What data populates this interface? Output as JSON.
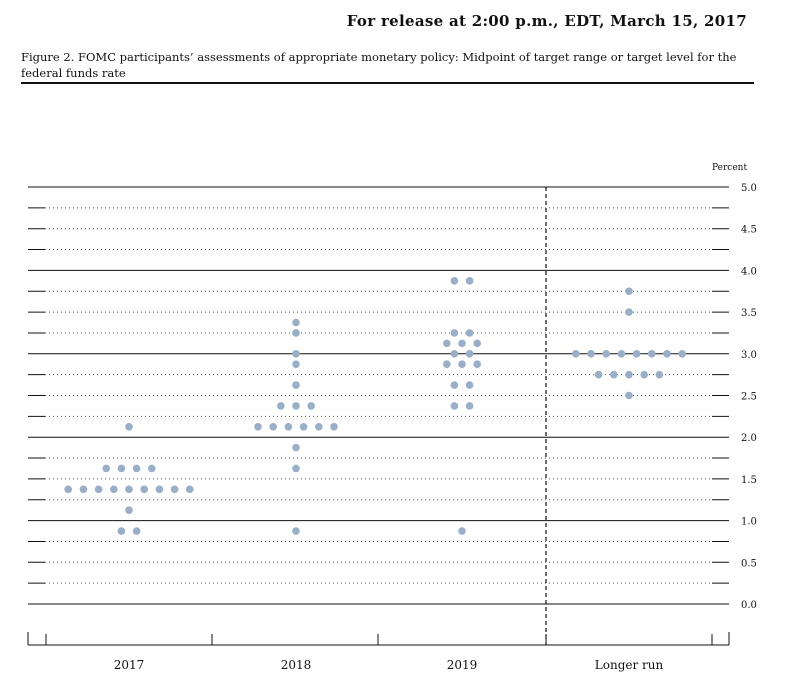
{
  "header": {
    "release": "For release at 2:00 p.m., EDT, March 15, 2017",
    "figure_caption": "Figure 2. FOMC participants’ assessments of appropriate monetary policy: Midpoint of target range or target level for the federal funds rate"
  },
  "chart_data": {
    "type": "scatter",
    "subtype": "dot plot",
    "ylabel": "Percent",
    "ylim": [
      0,
      5
    ],
    "yticks": [
      "0.0",
      "0.5",
      "1.0",
      "1.5",
      "2.0",
      "2.5",
      "3.0",
      "3.5",
      "4.0",
      "4.5",
      "5.0"
    ],
    "y_axis_side": "right",
    "grid": "dotted at 0.25 steps, solid at whole numbers",
    "categories": [
      "2017",
      "2018",
      "2019",
      "Longer run"
    ],
    "separator": "dashed line before Longer run",
    "dot_color": "#9aaec8",
    "series": [
      {
        "category": "2017",
        "points": [
          {
            "y": 2.125,
            "count": 1
          },
          {
            "y": 1.625,
            "count": 4
          },
          {
            "y": 1.375,
            "count": 9
          },
          {
            "y": 1.125,
            "count": 1
          },
          {
            "y": 0.875,
            "count": 2
          }
        ]
      },
      {
        "category": "2018",
        "points": [
          {
            "y": 3.375,
            "count": 1
          },
          {
            "y": 3.25,
            "count": 1
          },
          {
            "y": 3.0,
            "count": 1
          },
          {
            "y": 2.875,
            "count": 1
          },
          {
            "y": 2.625,
            "count": 1
          },
          {
            "y": 2.375,
            "count": 3
          },
          {
            "y": 2.125,
            "count": 6
          },
          {
            "y": 1.875,
            "count": 1
          },
          {
            "y": 1.625,
            "count": 1
          },
          {
            "y": 0.875,
            "count": 1
          }
        ]
      },
      {
        "category": "2019",
        "points": [
          {
            "y": 3.875,
            "count": 2
          },
          {
            "y": 3.25,
            "count": 2
          },
          {
            "y": 3.125,
            "count": 3
          },
          {
            "y": 3.0,
            "count": 2
          },
          {
            "y": 2.875,
            "count": 3
          },
          {
            "y": 2.625,
            "count": 2
          },
          {
            "y": 2.375,
            "count": 2
          },
          {
            "y": 0.875,
            "count": 1
          }
        ]
      },
      {
        "category": "Longer run",
        "points": [
          {
            "y": 3.75,
            "count": 1
          },
          {
            "y": 3.5,
            "count": 1
          },
          {
            "y": 3.0,
            "count": 8
          },
          {
            "y": 2.75,
            "count": 5
          },
          {
            "y": 2.5,
            "count": 1
          }
        ]
      }
    ]
  }
}
